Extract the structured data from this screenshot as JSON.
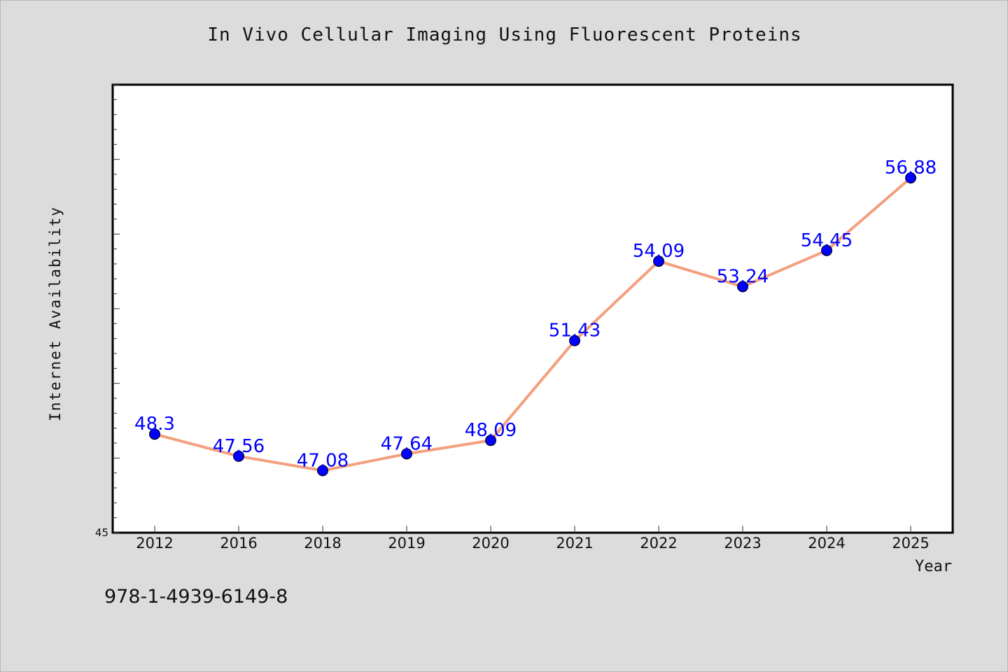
{
  "chart_data": {
    "type": "line",
    "title": "In Vivo Cellular Imaging Using Fluorescent Proteins",
    "xlabel": "Year",
    "ylabel": "Internet Availability",
    "categories": [
      "2012",
      "2016",
      "2018",
      "2019",
      "2020",
      "2021",
      "2022",
      "2023",
      "2024",
      "2025"
    ],
    "series": [
      {
        "values": [
          48.3,
          47.56,
          47.08,
          47.64,
          48.09,
          51.43,
          54.09,
          53.24,
          54.45,
          56.88
        ]
      }
    ],
    "data_labels": [
      "48.3",
      "47.56",
      "47.08",
      "47.64",
      "48.09",
      "51.43",
      "54.09",
      "53.24",
      "54.45",
      "56.88"
    ],
    "y_tick_labels": [
      {
        "value": 45,
        "label": "45"
      }
    ],
    "ylim": [
      45,
      60
    ],
    "grid": false,
    "legend": "none",
    "colors": {
      "line": "#f4a07e",
      "marker": "#0000ff",
      "data_label": "#0000ff",
      "axis": "#000000",
      "background": "#dcdcdc",
      "plot_background": "#ffffff"
    }
  },
  "footer": {
    "isbn": "978-1-4939-6149-8"
  }
}
